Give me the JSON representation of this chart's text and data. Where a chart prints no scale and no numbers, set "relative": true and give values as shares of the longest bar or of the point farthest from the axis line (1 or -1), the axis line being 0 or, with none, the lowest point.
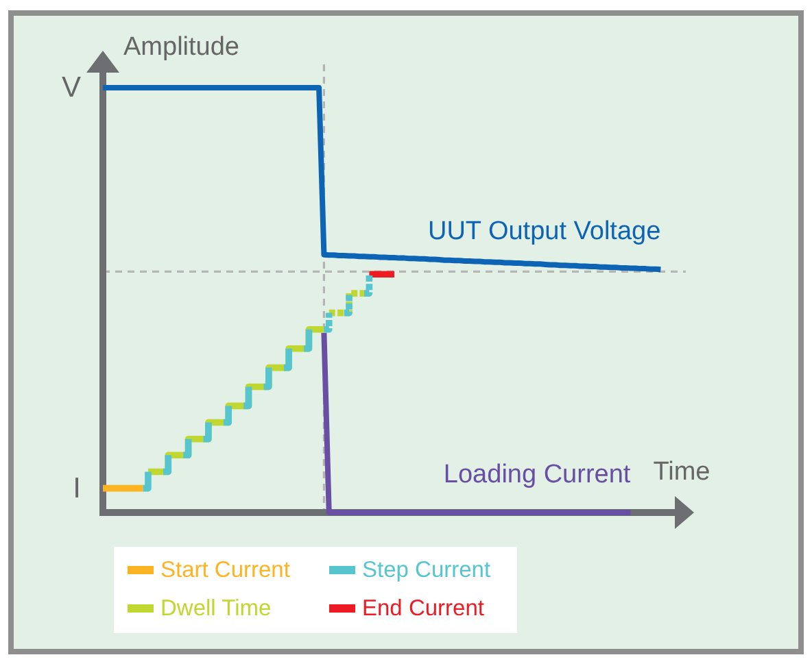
{
  "chart_data": {
    "type": "line",
    "relative": true,
    "xlabel": "Time",
    "ylabel": "Amplitude",
    "legend": "bottom left",
    "categories": [
      null,
      null,
      null,
      null,
      null,
      null,
      null,
      null,
      null,
      null,
      null,
      null,
      null,
      null,
      null,
      null,
      null,
      null,
      null,
      null,
      null,
      null,
      null,
      null,
      null,
      null,
      null,
      null,
      null,
      null,
      null,
      null,
      null,
      null,
      null,
      null,
      null,
      null,
      null,
      null,
      null,
      null,
      null,
      null,
      null,
      null,
      null,
      null,
      null,
      null,
      null,
      null,
      null,
      null,
      null,
      null,
      null,
      null,
      null,
      null,
      null,
      null,
      null,
      null,
      null,
      null,
      null,
      null,
      null,
      null,
      null,
      null,
      null,
      null,
      null,
      null,
      null,
      null,
      null,
      null,
      null,
      null,
      null,
      null,
      null,
      null,
      null,
      null,
      null,
      null,
      null,
      null,
      null,
      null,
      null,
      null,
      null,
      null,
      null,
      null,
      null,
      null,
      null,
      null,
      null,
      null,
      null,
      null,
      null,
      null,
      null,
      null,
      null,
      null,
      null,
      null,
      null
    ],
    "annotations": [
      "V",
      "I"
    ],
    "ref_lines": [
      {
        "axis": "y",
        "value": 0.567,
        "color": "#b5b5b5",
        "line_style": "dashed"
      }
    ],
    "series": [
      {
        "name": "UUT Output Voltage",
        "color": "#0d64b5",
        "values": [
          1,
          1,
          1,
          1,
          1,
          1,
          1,
          1,
          1,
          1,
          1,
          1,
          1,
          1,
          1,
          1,
          1,
          1,
          1,
          1,
          1,
          1,
          1,
          1,
          1,
          1,
          1,
          1,
          1,
          1,
          1,
          1,
          1,
          1,
          1,
          1,
          1,
          1,
          1,
          1,
          1,
          1,
          1,
          1,
          0.607,
          0.606,
          0.606,
          0.605,
          0.605,
          0.604,
          0.604,
          0.603,
          0.603,
          0.602,
          0.602,
          0.601,
          0.601,
          0.6,
          0.6,
          0.599,
          0.599,
          0.598,
          0.598,
          0.597,
          0.597,
          0.596,
          0.596,
          0.595,
          0.594,
          0.594,
          0.593,
          0.593,
          0.592,
          0.592,
          0.591,
          0.591,
          0.59,
          0.59,
          0.589,
          0.589,
          0.588,
          0.588,
          0.587,
          0.587,
          0.586,
          0.586,
          0.585,
          0.585,
          0.584,
          0.583,
          0.583,
          0.582,
          0.582,
          0.581,
          0.581,
          0.58,
          0.58,
          0.579,
          0.579,
          0.578,
          0.578,
          0.577,
          0.577,
          0.576,
          0.576,
          0.575,
          0.575,
          0.574,
          0.574,
          0.573,
          0.573,
          0.572,
          null,
          null,
          null,
          null,
          null
        ]
      },
      {
        "name": "Loading Current",
        "color": "#694fa3",
        "values": [
          null,
          null,
          null,
          null,
          null,
          null,
          null,
          null,
          null,
          null,
          null,
          null,
          null,
          null,
          null,
          null,
          null,
          null,
          null,
          null,
          null,
          null,
          null,
          null,
          null,
          null,
          null,
          null,
          null,
          null,
          null,
          null,
          null,
          null,
          null,
          null,
          null,
          null,
          null,
          null,
          null,
          null,
          null,
          null,
          0.423,
          0,
          0,
          0,
          0,
          0,
          0,
          0,
          0,
          0,
          0,
          0,
          0,
          0,
          0,
          0,
          0,
          0,
          0,
          0,
          0,
          0,
          0,
          0,
          0,
          0,
          0,
          0,
          0,
          0,
          0,
          0,
          0,
          0,
          0,
          0,
          0,
          0,
          0,
          0,
          0,
          0,
          0,
          0,
          0,
          0,
          0,
          0,
          0,
          0,
          0,
          0,
          0,
          0,
          0,
          0,
          0,
          0,
          0,
          0,
          0,
          0,
          null,
          null,
          null,
          null,
          null,
          null,
          null,
          null,
          null,
          null,
          null
        ]
      },
      {
        "name": "Start Current",
        "type": "step",
        "color": "#fcb423",
        "values": [
          0.057,
          0.057,
          0.057,
          0.057,
          0.057,
          0.057,
          0.057,
          0.057,
          0.057,
          null,
          null,
          null,
          null,
          null,
          null,
          null,
          null,
          null,
          null,
          null,
          null,
          null,
          null,
          null,
          null,
          null,
          null,
          null,
          null,
          null,
          null,
          null,
          null,
          null,
          null,
          null,
          null,
          null,
          null,
          null,
          null,
          null,
          null,
          null,
          null,
          null,
          null,
          null,
          null,
          null,
          null,
          null,
          null,
          null,
          null,
          null,
          null,
          null,
          null,
          null,
          null,
          null,
          null,
          null,
          null,
          null,
          null,
          null,
          null,
          null,
          null,
          null,
          null,
          null,
          null,
          null,
          null,
          null,
          null,
          null,
          null,
          null,
          null,
          null,
          null,
          null,
          null,
          null,
          null,
          null,
          null,
          null,
          null,
          null,
          null,
          null,
          null,
          null,
          null,
          null,
          null,
          null,
          null,
          null,
          null,
          null,
          null,
          null,
          null,
          null,
          null,
          null,
          null,
          null,
          null,
          null,
          null
        ]
      },
      {
        "name": "Dwell Time",
        "type": "step",
        "color": "#c0d731",
        "values": [
          null,
          null,
          null,
          null,
          null,
          null,
          null,
          null,
          null,
          0.096,
          0.096,
          0.096,
          0.096,
          0.135,
          0.135,
          0.135,
          0.135,
          0.173,
          0.173,
          0.173,
          0.173,
          0.212,
          0.212,
          0.212,
          0.212,
          0.251,
          0.251,
          0.251,
          0.251,
          0.296,
          0.296,
          0.296,
          0.296,
          0.341,
          0.341,
          0.341,
          0.341,
          0.386,
          0.386,
          0.386,
          0.386,
          0.431,
          0.431,
          0.431,
          0.431,
          null,
          null,
          null,
          null,
          null,
          null,
          null,
          null,
          null,
          null,
          null,
          null,
          null,
          null,
          null,
          null,
          null,
          null,
          null,
          null,
          null,
          null,
          null,
          null,
          null,
          null,
          null,
          null,
          null,
          null,
          null,
          null,
          null,
          null,
          null,
          null,
          null,
          null,
          null,
          null,
          null,
          null,
          null,
          null,
          null,
          null,
          null,
          null,
          null,
          null,
          null,
          null,
          null,
          null,
          null,
          null,
          null,
          null,
          null,
          null,
          null,
          null,
          null,
          null,
          null,
          null,
          null,
          null,
          null,
          null,
          null,
          null
        ]
      },
      {
        "name": "Step Current",
        "type": "step",
        "color": "#56c5d0",
        "values": [
          null,
          null,
          null,
          null,
          null,
          null,
          null,
          null,
          0.057,
          0.096,
          null,
          null,
          0.096,
          0.135,
          null,
          null,
          0.135,
          0.173,
          null,
          null,
          0.173,
          0.212,
          null,
          null,
          0.212,
          0.251,
          null,
          null,
          0.251,
          0.296,
          null,
          null,
          0.296,
          0.341,
          null,
          null,
          0.341,
          0.386,
          null,
          null,
          0.386,
          0.431,
          null,
          null,
          null,
          null,
          null,
          null,
          null,
          null,
          null,
          null,
          null,
          null,
          null,
          null,
          null,
          null,
          null,
          null,
          null,
          null,
          null,
          null,
          null,
          null,
          null,
          null,
          null,
          null,
          null,
          null,
          null,
          null,
          null,
          null,
          null,
          null,
          null,
          null,
          null,
          null,
          null,
          null,
          null,
          null,
          null,
          null,
          null,
          null,
          null,
          null,
          null,
          null,
          null,
          null,
          null,
          null,
          null,
          null,
          null,
          null,
          null,
          null,
          null,
          null,
          null,
          null,
          null,
          null,
          null,
          null,
          null,
          null,
          null,
          null,
          null
        ]
      },
      {
        "name": "End Current",
        "type": "step",
        "color": "#ed1c24",
        "values": [
          null,
          null,
          null,
          null,
          null,
          null,
          null,
          null,
          null,
          null,
          null,
          null,
          null,
          null,
          null,
          null,
          null,
          null,
          null,
          null,
          null,
          null,
          null,
          null,
          null,
          null,
          null,
          null,
          null,
          null,
          null,
          null,
          null,
          null,
          null,
          null,
          null,
          null,
          null,
          null,
          null,
          null,
          null,
          null,
          null,
          null,
          null,
          null,
          null,
          null,
          null,
          null,
          null,
          0.561,
          0.561,
          0.561,
          0.561,
          0.561,
          0.561,
          null,
          null,
          null,
          null,
          null,
          null,
          null,
          null,
          null,
          null,
          null,
          null,
          null,
          null,
          null,
          null,
          null,
          null,
          null,
          null,
          null,
          null,
          null,
          null,
          null,
          null,
          null,
          null,
          null,
          null,
          null,
          null,
          null,
          null,
          null,
          null,
          null,
          null,
          null,
          null,
          null,
          null,
          null,
          null,
          null,
          null,
          null,
          null,
          null,
          null,
          null,
          null,
          null,
          null,
          null,
          null,
          null,
          null
        ]
      },
      {
        "type": "step",
        "color": "#c0d731",
        "line_style": "dashed",
        "values": [
          null,
          null,
          null,
          null,
          null,
          null,
          null,
          null,
          null,
          null,
          null,
          null,
          null,
          null,
          null,
          null,
          null,
          null,
          null,
          null,
          null,
          null,
          null,
          null,
          null,
          null,
          null,
          null,
          null,
          null,
          null,
          null,
          null,
          null,
          null,
          null,
          null,
          null,
          null,
          null,
          null,
          null,
          null,
          null,
          null,
          0.47,
          0.47,
          0.47,
          0.47,
          0.516,
          0.516,
          0.516,
          0.516,
          null,
          null,
          null,
          null,
          null,
          null,
          null,
          null,
          null,
          null,
          null,
          null,
          null,
          null,
          null,
          null,
          null,
          null,
          null,
          null,
          null,
          null,
          null,
          null,
          null,
          null,
          null,
          null,
          null,
          null,
          null,
          null,
          null,
          null,
          null,
          null,
          null,
          null,
          null,
          null,
          null,
          null,
          null,
          null,
          null,
          null,
          null,
          null,
          null,
          null,
          null,
          null,
          null,
          null,
          null,
          null,
          null,
          null,
          null,
          null,
          null,
          null,
          null,
          null
        ]
      },
      {
        "type": "step",
        "color": "#56c5d0",
        "line_style": "dashed",
        "values": [
          null,
          null,
          null,
          null,
          null,
          null,
          null,
          null,
          null,
          null,
          null,
          null,
          null,
          null,
          null,
          null,
          null,
          null,
          null,
          null,
          null,
          null,
          null,
          null,
          null,
          null,
          null,
          null,
          null,
          null,
          null,
          null,
          null,
          null,
          null,
          null,
          null,
          null,
          null,
          null,
          null,
          null,
          null,
          null,
          0.431,
          0.47,
          null,
          null,
          0.47,
          0.516,
          null,
          null,
          0.516,
          0.561,
          null,
          null,
          null,
          null,
          null,
          null,
          null,
          null,
          null,
          null,
          null,
          null,
          null,
          null,
          null,
          null,
          null,
          null,
          null,
          null,
          null,
          null,
          null,
          null,
          null,
          null,
          null,
          null,
          null,
          null,
          null,
          null,
          null,
          null,
          null,
          null,
          null,
          null,
          null,
          null,
          null,
          null,
          null,
          null,
          null,
          null,
          null,
          null,
          null,
          null,
          null,
          null,
          null,
          null,
          null,
          null,
          null,
          null,
          null,
          null,
          null,
          null,
          null
        ]
      }
    ]
  }
}
